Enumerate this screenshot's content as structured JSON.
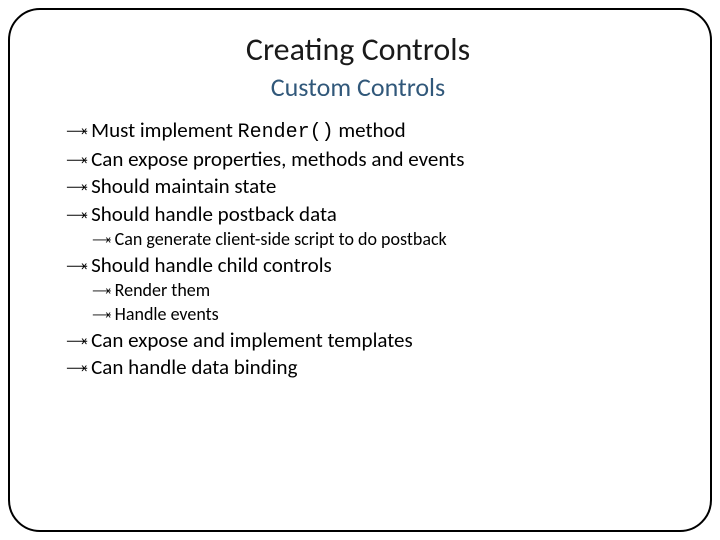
{
  "slide": {
    "title": "Creating Controls",
    "subtitle": "Custom Controls",
    "title_color": "#1a1a1a",
    "subtitle_color": "#31587a",
    "title_fontsize": 32,
    "subtitle_fontsize": 26,
    "body_fontsize_l1": 21,
    "body_fontsize_l2": 18,
    "bullet_glyph": "ή0",
    "border_color": "#000000",
    "border_radius": 32,
    "background_color": "#ffffff",
    "code_font": "Courier New",
    "bullets": [
      {
        "level": 1,
        "prefix": "Must implement ",
        "code": "Render()",
        "suffix": " method"
      },
      {
        "level": 1,
        "text": "Can expose properties, methods and events"
      },
      {
        "level": 1,
        "text": "Should maintain state"
      },
      {
        "level": 1,
        "text": "Should handle postback data"
      },
      {
        "level": 2,
        "text": "Can generate client-side script to do postback"
      },
      {
        "level": 1,
        "text": "Should handle child controls"
      },
      {
        "level": 2,
        "text": "Render them"
      },
      {
        "level": 2,
        "text": "Handle events"
      },
      {
        "level": 1,
        "text": "Can expose and implement templates"
      },
      {
        "level": 1,
        "text": "Can handle data binding"
      }
    ]
  }
}
